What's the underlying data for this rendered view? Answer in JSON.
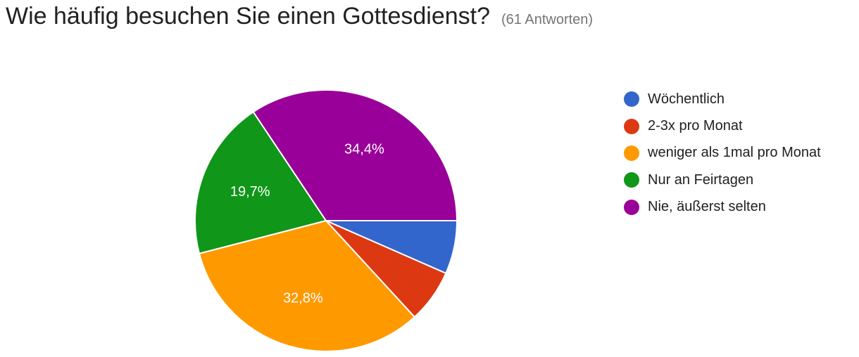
{
  "header": {
    "question": "Wie häufig besuchen Sie einen Gottesdienst?",
    "responses": "(61 Antworten)"
  },
  "chart_data": {
    "type": "pie",
    "title": "Wie häufig besuchen Sie einen Gottesdienst?",
    "total_responses": 61,
    "legend_position": "right",
    "slices": [
      {
        "label": "Wöchentlich",
        "value": 6.6,
        "color": "#3366cc",
        "display_label": ""
      },
      {
        "label": "2-3x pro Monat",
        "value": 6.6,
        "color": "#dc3912",
        "display_label": ""
      },
      {
        "label": "weniger als 1mal pro Monat",
        "value": 32.8,
        "color": "#ff9900",
        "display_label": "32,8%"
      },
      {
        "label": "Nur an Feirtagen",
        "value": 19.7,
        "color": "#109618",
        "display_label": "19,7%"
      },
      {
        "label": "Nie, äußerst selten",
        "value": 34.4,
        "color": "#990099",
        "display_label": "34,4%"
      }
    ]
  }
}
